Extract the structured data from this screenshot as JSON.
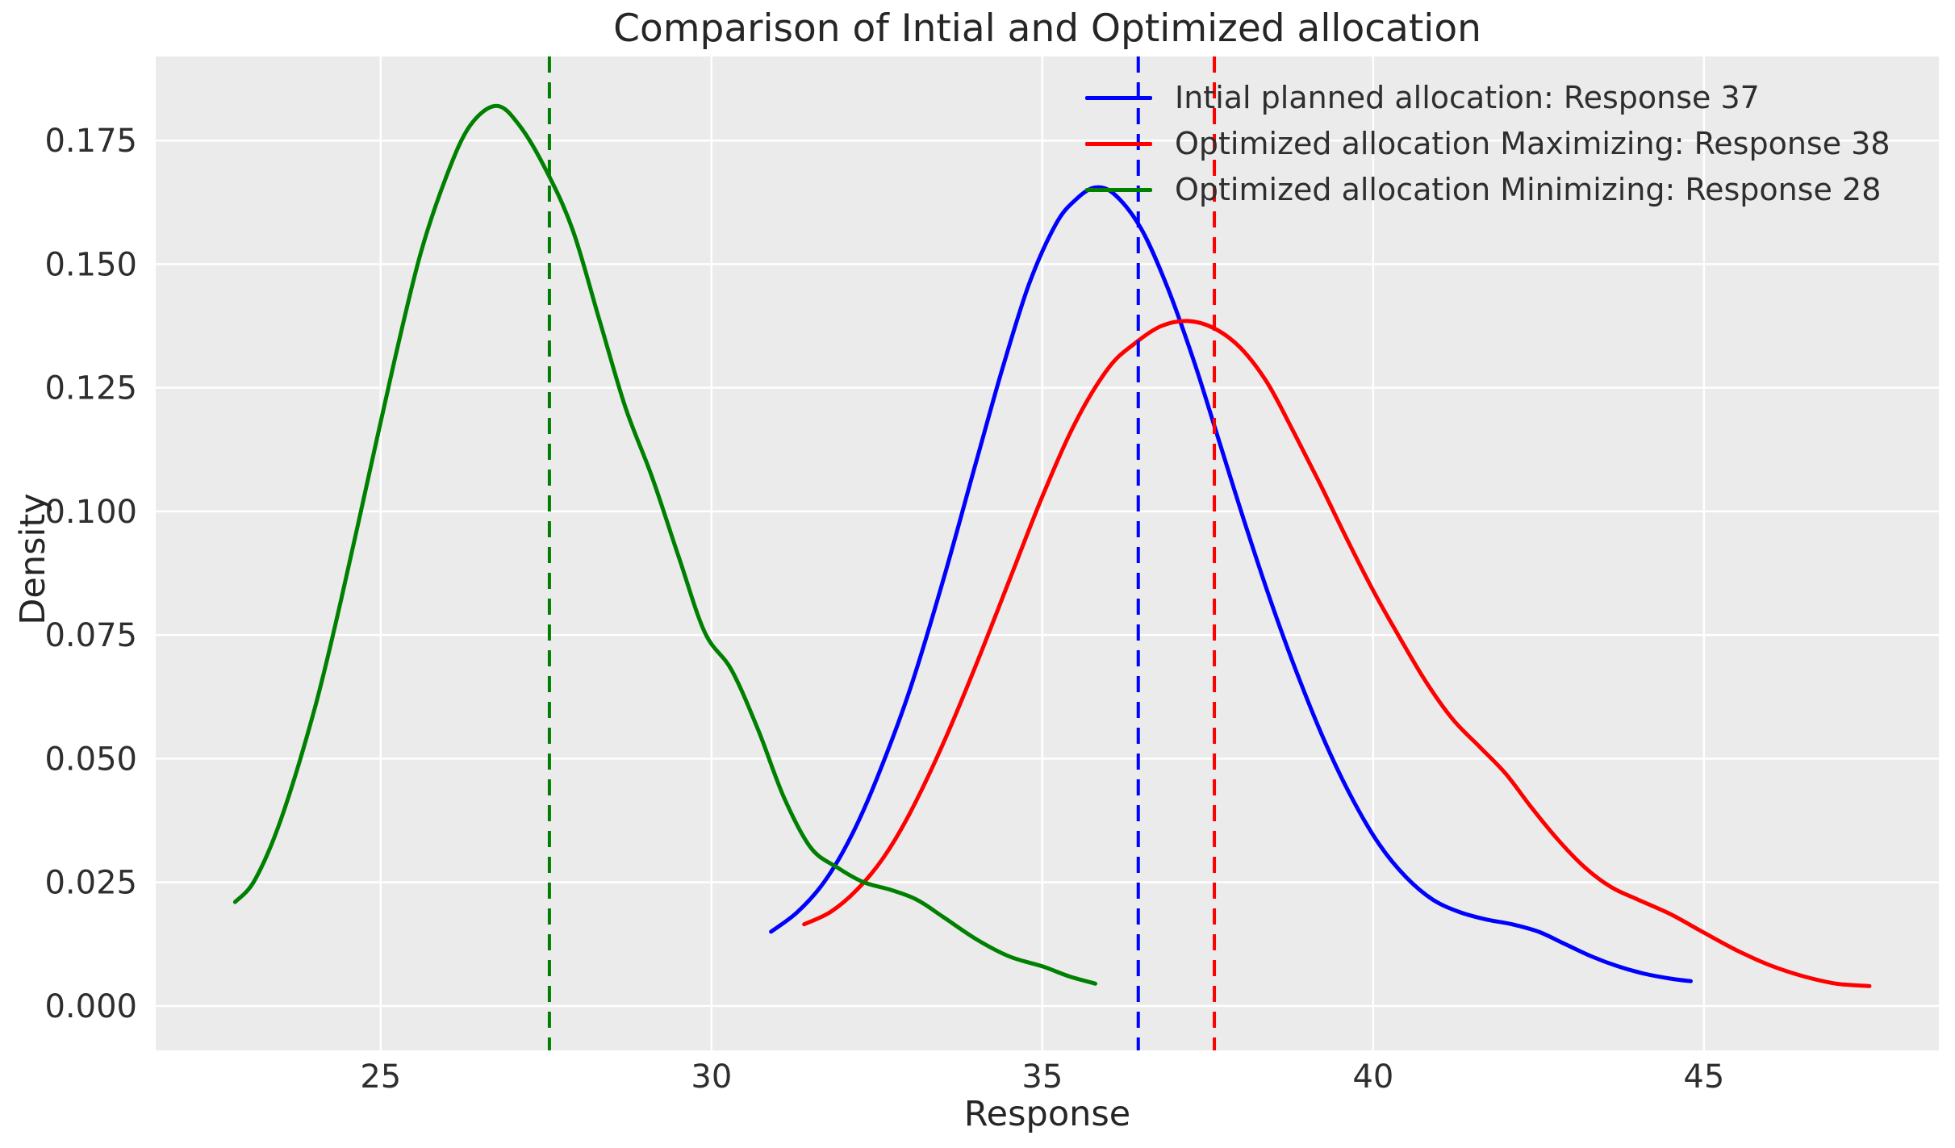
{
  "chart": {
    "title": "Comparison of Intial and Optimized allocation",
    "xlabel": "Response",
    "ylabel": "Density"
  },
  "chart_data": {
    "type": "line",
    "subtype": "kde-density-curves",
    "title": "Comparison of Intial and Optimized allocation",
    "xlabel": "Response",
    "ylabel": "Density",
    "xlim": [
      21.6,
      48.55
    ],
    "ylim": [
      -0.009,
      0.192
    ],
    "x_ticks": [
      25,
      30,
      35,
      40,
      45
    ],
    "y_ticks": [
      "0.000",
      "0.025",
      "0.050",
      "0.075",
      "0.100",
      "0.125",
      "0.150",
      "0.175"
    ],
    "grid": true,
    "legend_position": "upper right",
    "plot_background": "#ebebeb",
    "gridline_color": "#ffffff",
    "text_color": "#2e2e2e",
    "mean_line_style": "dashed",
    "series": [
      {
        "name": "Intial planned allocation: Response 37",
        "color": "#0000ff",
        "mean_x": 36.45,
        "x": [
          30.9,
          31.3,
          31.7,
          32.1,
          32.5,
          33.0,
          33.5,
          34.0,
          34.4,
          34.8,
          35.2,
          35.5,
          35.8,
          36.1,
          36.5,
          36.9,
          37.3,
          37.7,
          38.1,
          38.5,
          38.9,
          39.3,
          39.7,
          40.1,
          40.5,
          40.9,
          41.3,
          41.7,
          42.1,
          42.5,
          42.9,
          43.3,
          43.7,
          44.1,
          44.5,
          44.8
        ],
        "y": [
          0.015,
          0.019,
          0.025,
          0.034,
          0.046,
          0.064,
          0.086,
          0.11,
          0.129,
          0.146,
          0.158,
          0.163,
          0.1655,
          0.164,
          0.157,
          0.145,
          0.13,
          0.113,
          0.096,
          0.08,
          0.0655,
          0.0525,
          0.0415,
          0.0325,
          0.026,
          0.0215,
          0.019,
          0.0175,
          0.0165,
          0.015,
          0.0125,
          0.01,
          0.008,
          0.0065,
          0.0055,
          0.005
        ]
      },
      {
        "name": "Optimized allocation Maximizing: Response 38",
        "color": "#ff0000",
        "mean_x": 37.6,
        "x": [
          31.4,
          31.8,
          32.2,
          32.6,
          33.0,
          33.5,
          34.0,
          34.5,
          35.0,
          35.5,
          36.0,
          36.4,
          36.8,
          37.2,
          37.6,
          38.0,
          38.4,
          38.8,
          39.2,
          39.6,
          40.0,
          40.4,
          40.8,
          41.2,
          41.6,
          42.0,
          42.4,
          42.8,
          43.2,
          43.6,
          44.0,
          44.5,
          45.0,
          45.5,
          46.0,
          46.5,
          47.0,
          47.5
        ],
        "y": [
          0.0165,
          0.019,
          0.0235,
          0.03,
          0.039,
          0.053,
          0.069,
          0.086,
          0.103,
          0.118,
          0.129,
          0.134,
          0.1375,
          0.1385,
          0.137,
          0.133,
          0.126,
          0.116,
          0.1055,
          0.0945,
          0.084,
          0.0745,
          0.0655,
          0.058,
          0.0525,
          0.047,
          0.04,
          0.0335,
          0.028,
          0.024,
          0.0215,
          0.0185,
          0.0148,
          0.0112,
          0.0082,
          0.006,
          0.0045,
          0.004
        ]
      },
      {
        "name": "Optimized allocation Minimizing: Response 28",
        "color": "#008000",
        "mean_x": 27.55,
        "x": [
          22.8,
          23.1,
          23.5,
          24.0,
          24.4,
          24.8,
          25.2,
          25.6,
          26.0,
          26.35,
          26.75,
          27.1,
          27.5,
          27.9,
          28.3,
          28.7,
          29.1,
          29.5,
          29.9,
          30.3,
          30.7,
          31.1,
          31.5,
          31.9,
          32.3,
          32.7,
          33.1,
          33.5,
          34.0,
          34.5,
          35.0,
          35.4,
          35.8
        ],
        "y": [
          0.021,
          0.0255,
          0.038,
          0.06,
          0.082,
          0.106,
          0.13,
          0.152,
          0.168,
          0.178,
          0.182,
          0.178,
          0.169,
          0.157,
          0.139,
          0.121,
          0.107,
          0.091,
          0.0755,
          0.068,
          0.056,
          0.042,
          0.032,
          0.028,
          0.025,
          0.0235,
          0.0215,
          0.018,
          0.0135,
          0.01,
          0.008,
          0.006,
          0.0045
        ]
      }
    ]
  }
}
